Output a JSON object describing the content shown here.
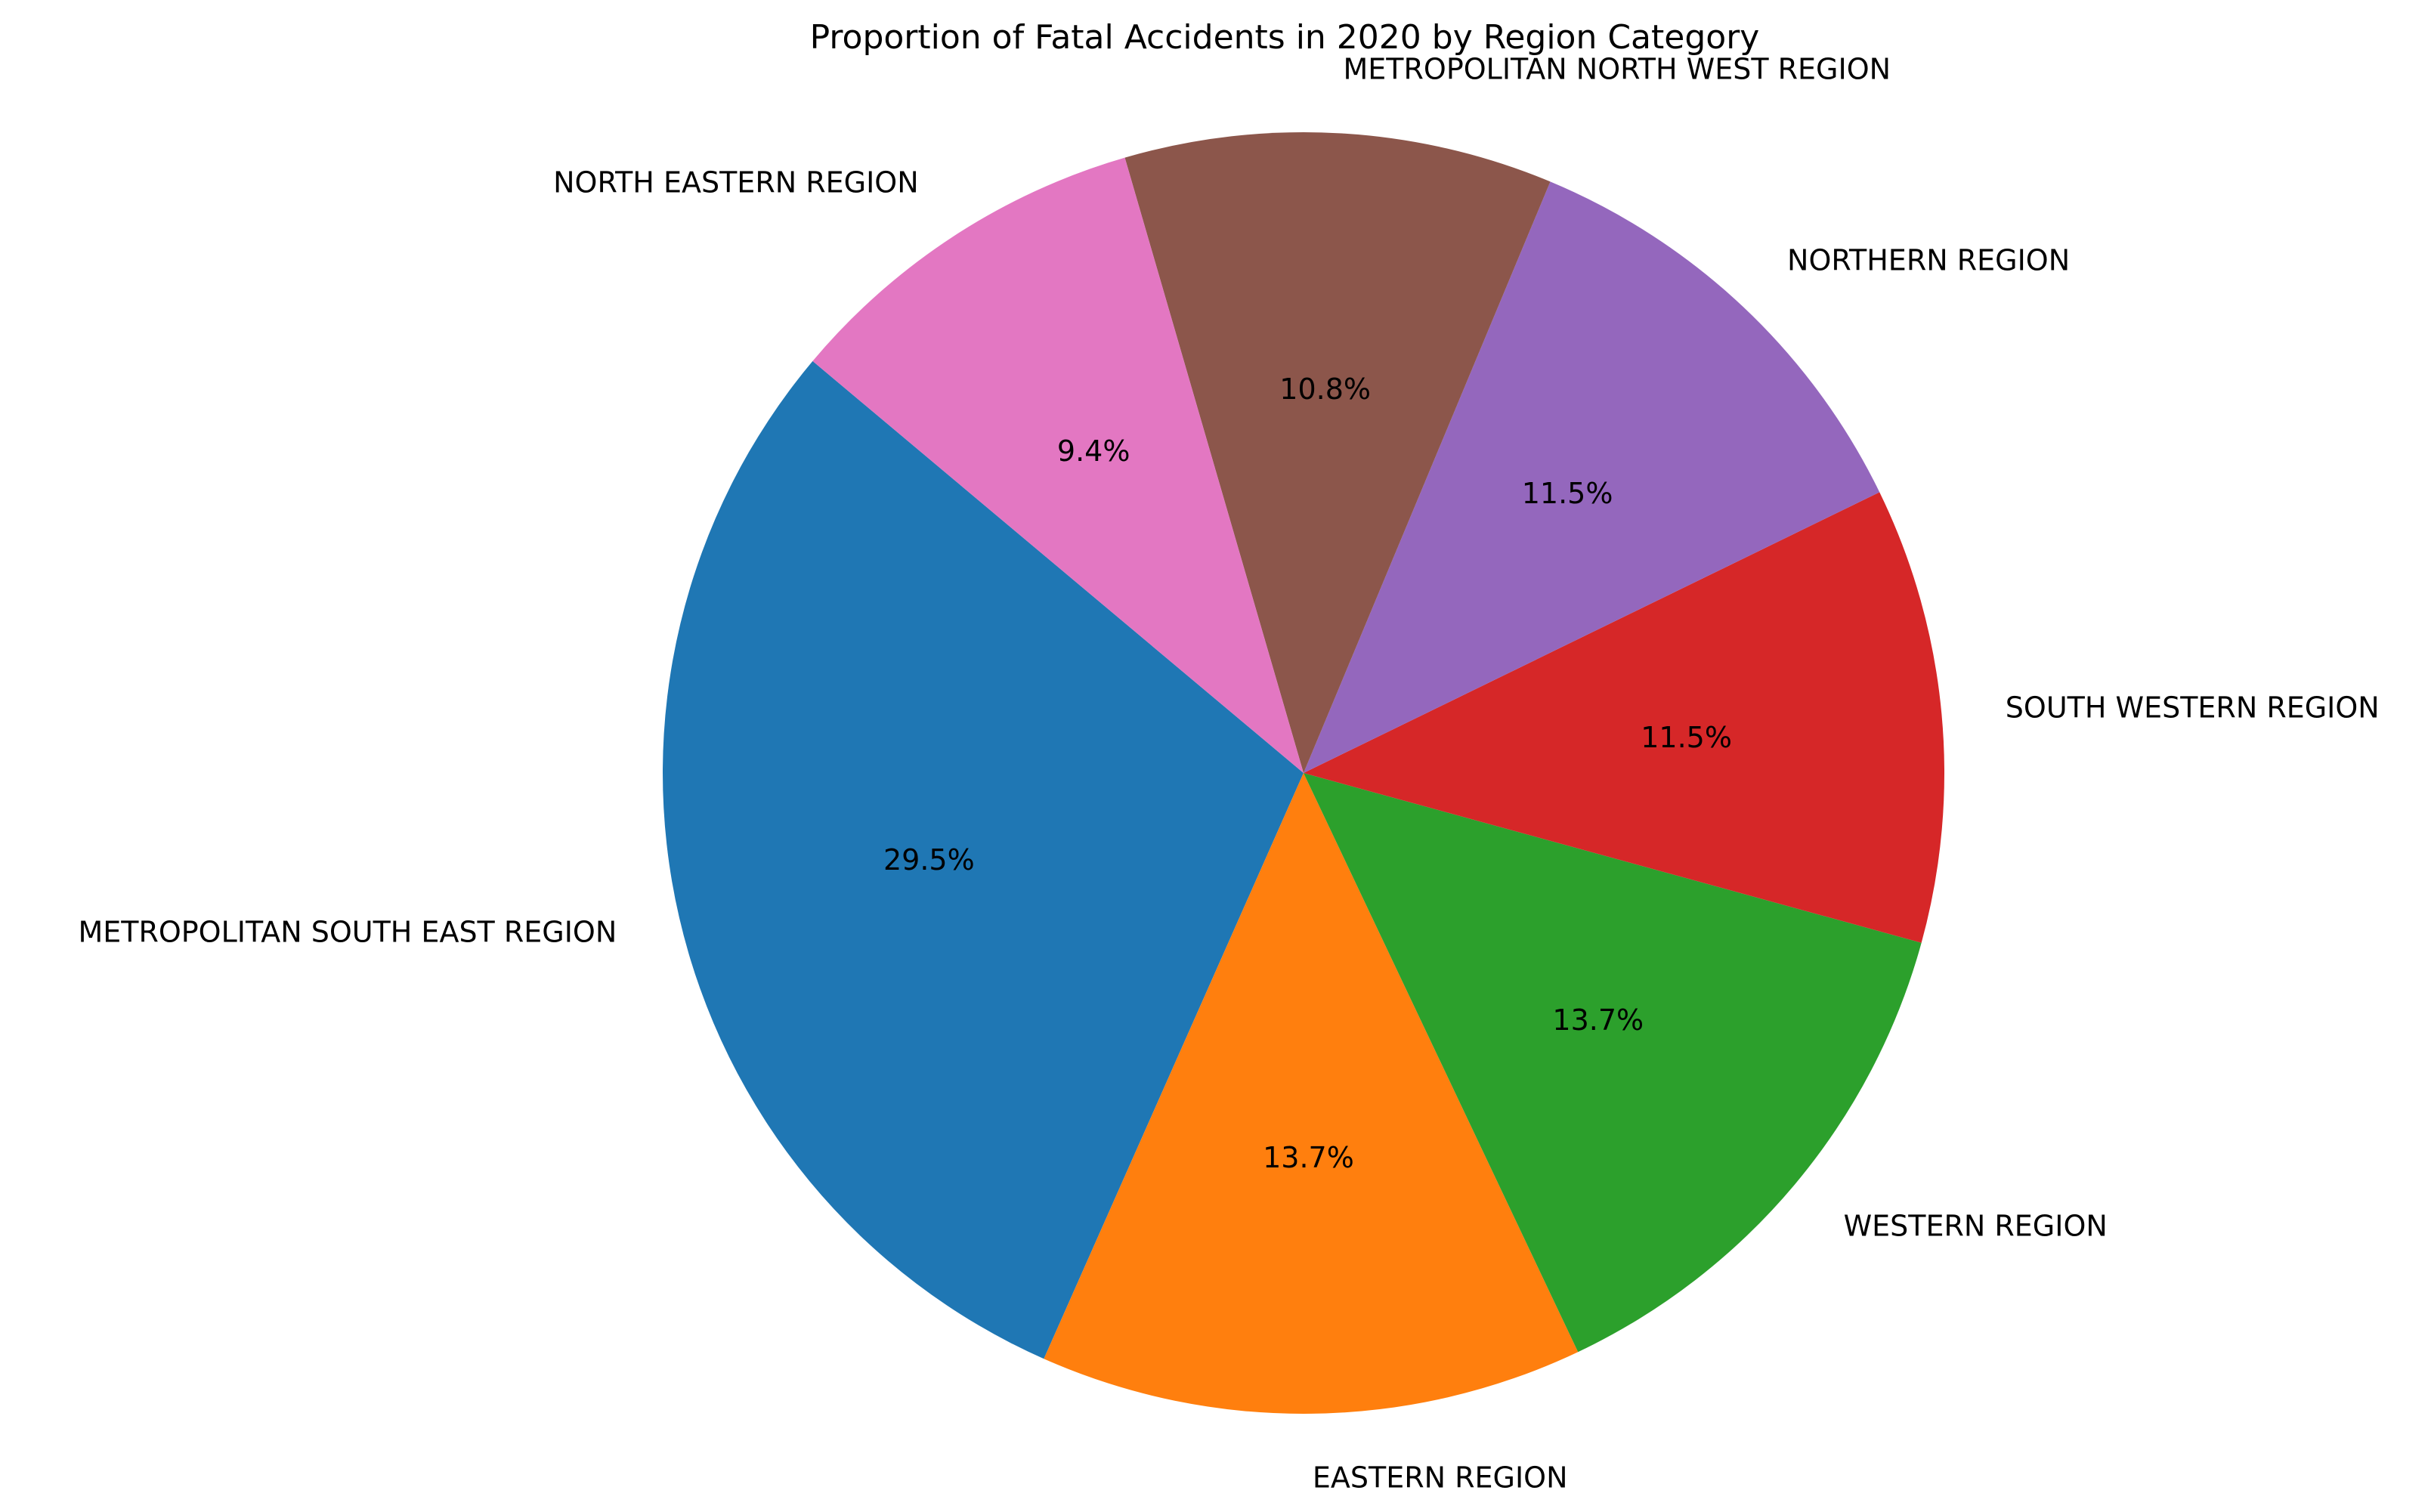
{
  "chart_data": {
    "type": "pie",
    "title": "Proportion of Fatal Accidents in 2020 by Region Category",
    "slices": [
      {
        "label": "METROPOLITAN SOUTH EAST REGION",
        "value": 29.5,
        "pct_label": "29.5%",
        "color": "#1f77b4"
      },
      {
        "label": "EASTERN REGION",
        "value": 13.7,
        "pct_label": "13.7%",
        "color": "#ff7f0e"
      },
      {
        "label": "WESTERN REGION",
        "value": 13.7,
        "pct_label": "13.7%",
        "color": "#2ca02c"
      },
      {
        "label": "SOUTH WESTERN REGION",
        "value": 11.5,
        "pct_label": "11.5%",
        "color": "#d62728"
      },
      {
        "label": "NORTHERN REGION",
        "value": 11.5,
        "pct_label": "11.5%",
        "color": "#9467bd"
      },
      {
        "label": "METROPOLITAN NORTH WEST REGION",
        "value": 10.8,
        "pct_label": "10.8%",
        "color": "#8c564b"
      },
      {
        "label": "NORTH EASTERN REGION",
        "value": 9.4,
        "pct_label": "9.4%",
        "color": "#e377c2"
      }
    ],
    "start_angle_deg": 140,
    "direction": "counterclockwise"
  }
}
